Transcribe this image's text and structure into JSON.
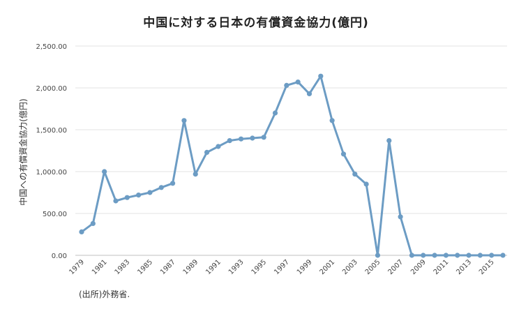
{
  "chart_data": {
    "type": "line",
    "title": "中国に対する日本の有償資金協力(億円)",
    "ylabel": "中国への有償資金協力(億円)",
    "xlabel": "",
    "source_note": "(出所)外務省.",
    "ylim": [
      0,
      2500
    ],
    "yticks": [
      "0.00",
      "500.00",
      "1,000.00",
      "1,500.00",
      "2,000.00",
      "2,500.00"
    ],
    "xticks": [
      "1979",
      "1981",
      "1983",
      "1985",
      "1987",
      "1989",
      "1991",
      "1993",
      "1995",
      "1997",
      "1999",
      "2001",
      "2003",
      "2005",
      "2007",
      "2009",
      "2011",
      "2013",
      "2015"
    ],
    "grid": "horizontal",
    "line_color": "#6C9CC4",
    "x": [
      1979,
      1980,
      1981,
      1982,
      1983,
      1984,
      1985,
      1986,
      1987,
      1988,
      1989,
      1990,
      1991,
      1992,
      1993,
      1994,
      1995,
      1996,
      1997,
      1998,
      1999,
      2000,
      2001,
      2002,
      2003,
      2004,
      2005,
      2006,
      2007,
      2008,
      2009,
      2010,
      2011,
      2012,
      2013,
      2014,
      2015,
      2016
    ],
    "series": [
      {
        "values": [
          280,
          380,
          1000,
          650,
          690,
          720,
          750,
          810,
          860,
          1610,
          970,
          1230,
          1300,
          1370,
          1390,
          1400,
          1410,
          1700,
          2030,
          2070,
          1930,
          2140,
          1610,
          1210,
          970,
          850,
          0,
          1370,
          460,
          0,
          0,
          0,
          0,
          0,
          0,
          0,
          0,
          0
        ]
      }
    ]
  }
}
